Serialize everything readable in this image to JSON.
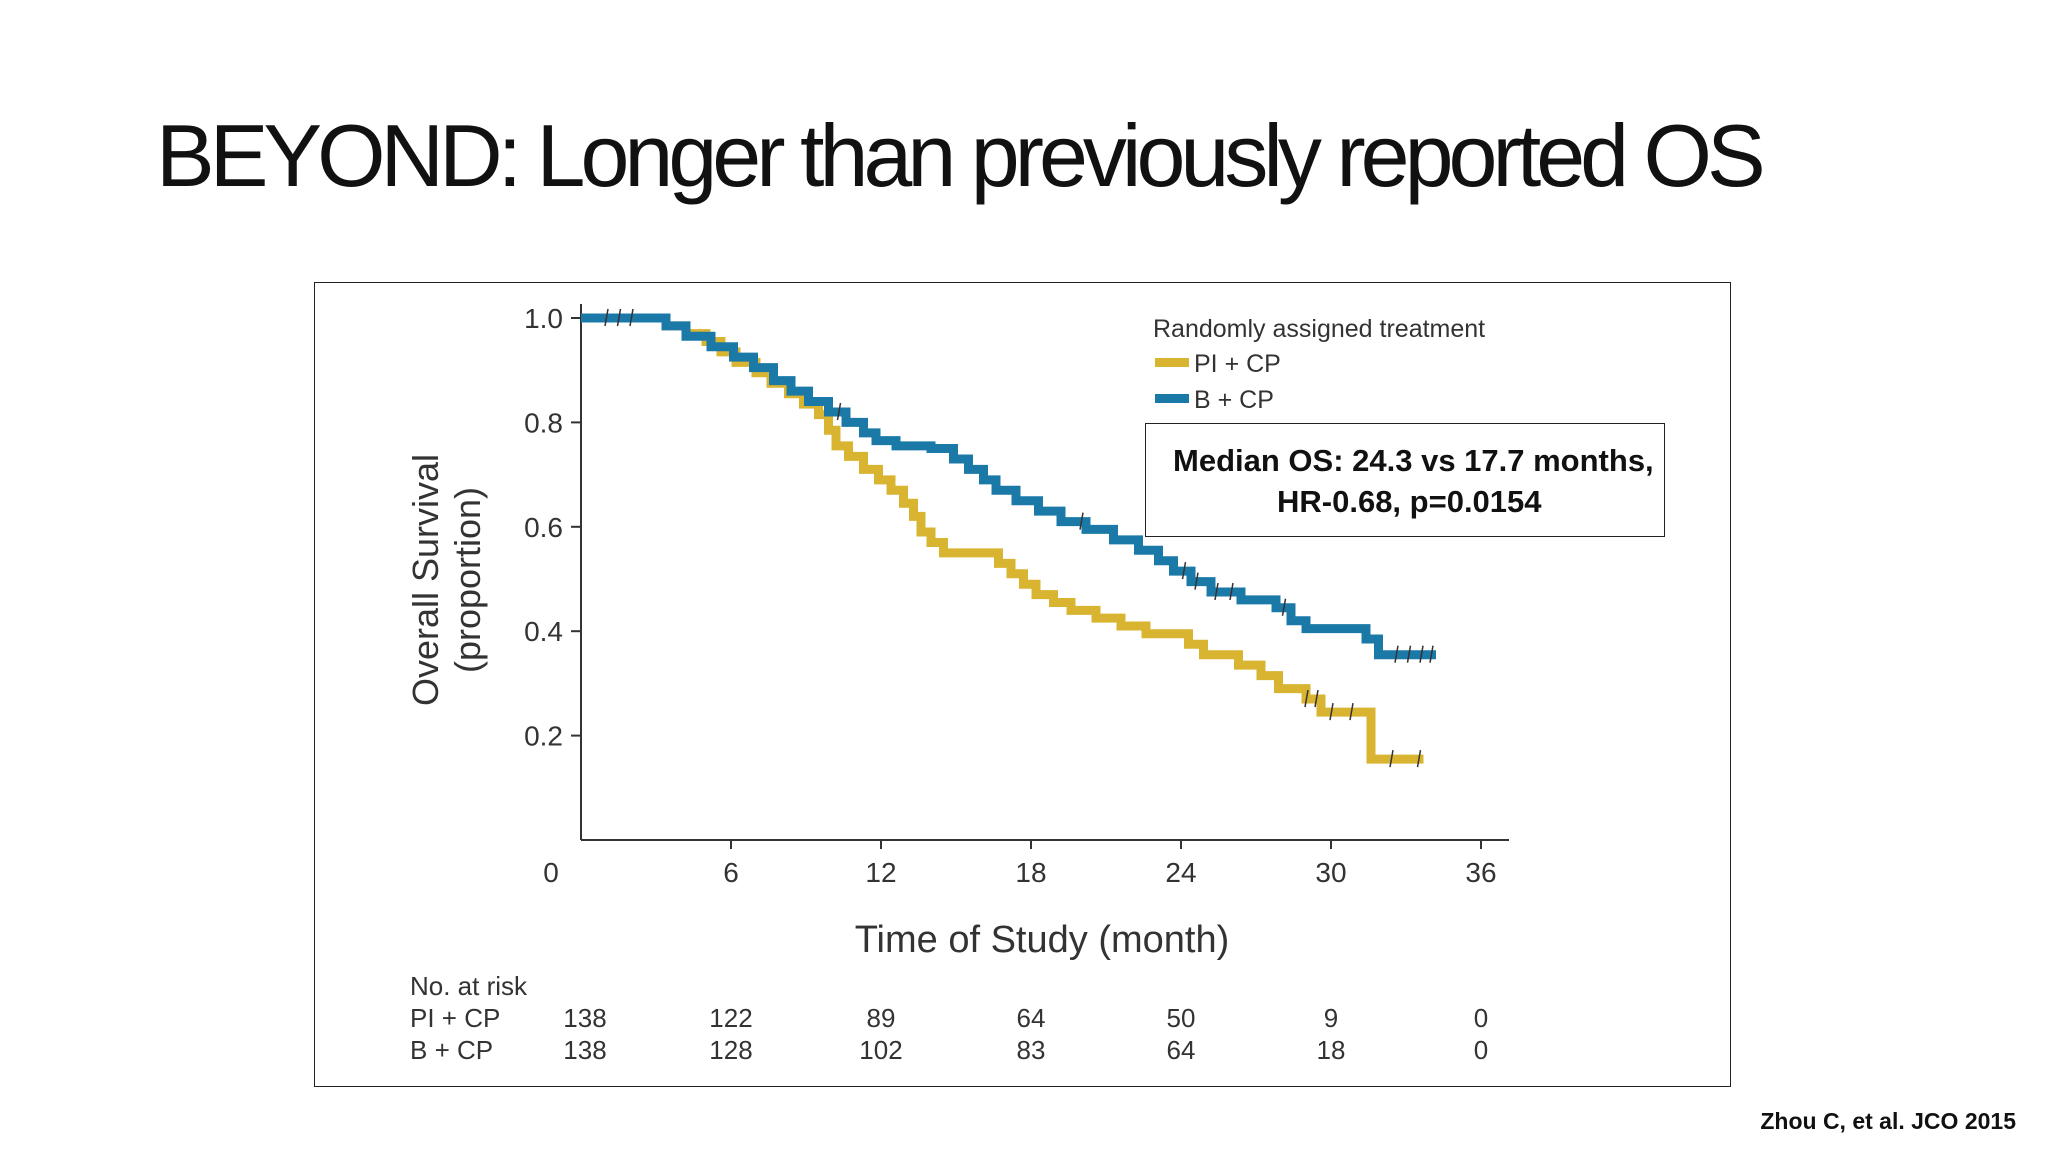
{
  "slide": {
    "title": "BEYOND: Longer than previously reported OS",
    "citation": "Zhou C, et al. JCO 2015"
  },
  "annotation": {
    "text": "Median OS: 24.3 vs 17.7 months,  HR-0.68, p=0.0154"
  },
  "chart_data": {
    "type": "line",
    "subtype": "kaplan-meier step curve",
    "title": "",
    "xlabel": "Time of Study (month)",
    "ylabel": "Overall Survival (proportion)",
    "xlim": [
      0,
      36
    ],
    "ylim": [
      0,
      1.0
    ],
    "x_ticks": [
      0,
      6,
      12,
      18,
      24,
      30,
      36
    ],
    "y_ticks": [
      0.2,
      0.4,
      0.6,
      0.8,
      1.0
    ],
    "y_tick_labels": [
      "0.2",
      "0.4",
      "0.6",
      "0.8",
      "1.0"
    ],
    "grid": false,
    "legend": {
      "title": "Randomly assigned treatment",
      "position": "top-right"
    },
    "series": [
      {
        "name": "PI + CP",
        "color": "#D9B430",
        "points": [
          [
            0,
            1.0
          ],
          [
            2.4,
            1.0
          ],
          [
            3.4,
            0.985
          ],
          [
            4.2,
            0.97
          ],
          [
            5.0,
            0.955
          ],
          [
            5.6,
            0.935
          ],
          [
            6.2,
            0.915
          ],
          [
            7.0,
            0.895
          ],
          [
            7.6,
            0.875
          ],
          [
            8.3,
            0.855
          ],
          [
            8.9,
            0.835
          ],
          [
            9.5,
            0.815
          ],
          [
            9.9,
            0.785
          ],
          [
            10.2,
            0.755
          ],
          [
            10.7,
            0.735
          ],
          [
            11.3,
            0.71
          ],
          [
            11.9,
            0.69
          ],
          [
            12.4,
            0.67
          ],
          [
            12.9,
            0.645
          ],
          [
            13.3,
            0.62
          ],
          [
            13.6,
            0.59
          ],
          [
            14.0,
            0.57
          ],
          [
            14.5,
            0.55
          ],
          [
            16.2,
            0.55
          ],
          [
            16.7,
            0.53
          ],
          [
            17.2,
            0.51
          ],
          [
            17.7,
            0.49
          ],
          [
            18.2,
            0.47
          ],
          [
            18.9,
            0.455
          ],
          [
            19.6,
            0.44
          ],
          [
            20.6,
            0.425
          ],
          [
            21.6,
            0.41
          ],
          [
            22.6,
            0.395
          ],
          [
            24.0,
            0.395
          ],
          [
            24.3,
            0.375
          ],
          [
            24.9,
            0.355
          ],
          [
            26.3,
            0.335
          ],
          [
            27.2,
            0.315
          ],
          [
            27.9,
            0.29
          ],
          [
            29.0,
            0.27
          ],
          [
            29.6,
            0.245
          ],
          [
            31.5,
            0.245
          ],
          [
            31.6,
            0.155
          ],
          [
            33.7,
            0.155
          ]
        ],
        "censor_times": [
          29.0,
          29.4,
          30.0,
          30.8,
          32.4,
          33.5
        ]
      },
      {
        "name": "B + CP",
        "color": "#1B79A8",
        "points": [
          [
            0,
            1.0
          ],
          [
            2.4,
            1.0
          ],
          [
            3.4,
            0.985
          ],
          [
            4.2,
            0.965
          ],
          [
            5.2,
            0.945
          ],
          [
            6.1,
            0.925
          ],
          [
            6.9,
            0.905
          ],
          [
            7.7,
            0.88
          ],
          [
            8.4,
            0.86
          ],
          [
            9.1,
            0.84
          ],
          [
            9.9,
            0.82
          ],
          [
            10.6,
            0.8
          ],
          [
            11.3,
            0.78
          ],
          [
            11.8,
            0.765
          ],
          [
            12.6,
            0.755
          ],
          [
            14.0,
            0.75
          ],
          [
            14.9,
            0.73
          ],
          [
            15.5,
            0.71
          ],
          [
            16.1,
            0.69
          ],
          [
            16.6,
            0.67
          ],
          [
            17.4,
            0.65
          ],
          [
            18.3,
            0.63
          ],
          [
            19.2,
            0.61
          ],
          [
            20.2,
            0.595
          ],
          [
            21.3,
            0.575
          ],
          [
            22.3,
            0.555
          ],
          [
            23.1,
            0.535
          ],
          [
            23.7,
            0.515
          ],
          [
            24.4,
            0.495
          ],
          [
            25.2,
            0.475
          ],
          [
            26.4,
            0.46
          ],
          [
            27.8,
            0.445
          ],
          [
            28.4,
            0.42
          ],
          [
            29.0,
            0.405
          ],
          [
            30.9,
            0.405
          ],
          [
            31.4,
            0.385
          ],
          [
            31.9,
            0.355
          ],
          [
            34.2,
            0.355
          ]
        ],
        "censor_times": [
          1.0,
          1.5,
          2.0,
          10.3,
          20.0,
          24.1,
          24.6,
          25.4,
          26.0,
          28.1,
          32.6,
          33.1,
          33.6,
          34.0
        ]
      }
    ],
    "risk_table": {
      "title": "No. at risk",
      "times": [
        0,
        6,
        12,
        18,
        24,
        30,
        36
      ],
      "rows": [
        {
          "name": "PI + CP",
          "values": [
            "138",
            "122",
            "89",
            "64",
            "50",
            "9",
            "0"
          ]
        },
        {
          "name": "B + CP",
          "values": [
            "138",
            "128",
            "102",
            "83",
            "64",
            "18",
            "0"
          ]
        }
      ]
    }
  }
}
